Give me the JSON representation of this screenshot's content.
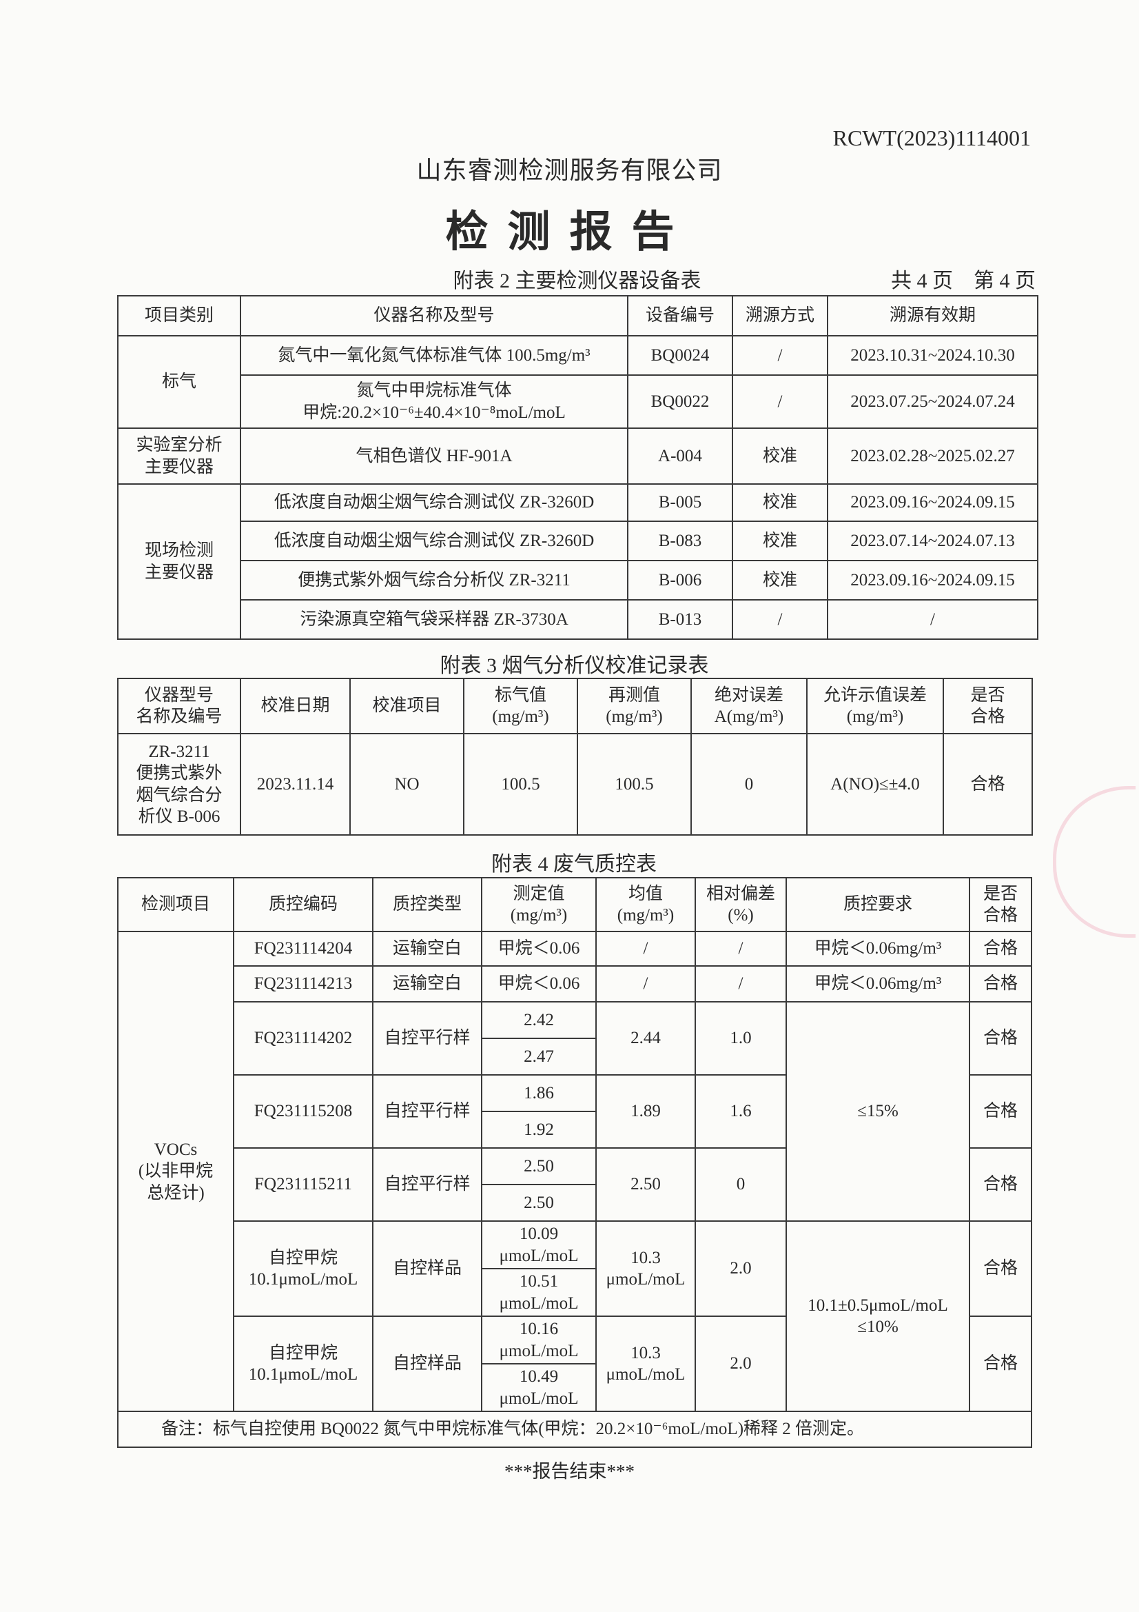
{
  "header": {
    "report_no": "RCWT(2023)1114001",
    "company": "山东睿测检测服务有限公司",
    "title": "检测报告",
    "page_info": "共 4 页　第 4 页"
  },
  "table2": {
    "caption": "附表 2  主要检测仪器设备表",
    "headers": [
      "项目类别",
      "仪器名称及型号",
      "设备编号",
      "溯源方式",
      "溯源有效期"
    ],
    "groups": [
      "标气",
      "实验室分析\n主要仪器",
      "现场检测\n主要仪器"
    ],
    "rows": [
      {
        "name": "氮气中一氧化氮气体标准气体 100.5mg/m³",
        "id": "BQ0024",
        "method": "/",
        "validity": "2023.10.31~2024.10.30"
      },
      {
        "name": "氮气中甲烷标准气体\n甲烷:20.2×10⁻⁶±40.4×10⁻⁸moL/moL",
        "id": "BQ0022",
        "method": "/",
        "validity": "2023.07.25~2024.07.24"
      },
      {
        "name": "气相色谱仪 HF-901A",
        "id": "A-004",
        "method": "校准",
        "validity": "2023.02.28~2025.02.27"
      },
      {
        "name": "低浓度自动烟尘烟气综合测试仪 ZR-3260D",
        "id": "B-005",
        "method": "校准",
        "validity": "2023.09.16~2024.09.15"
      },
      {
        "name": "低浓度自动烟尘烟气综合测试仪 ZR-3260D",
        "id": "B-083",
        "method": "校准",
        "validity": "2023.07.14~2024.07.13"
      },
      {
        "name": "便携式紫外烟气综合分析仪 ZR-3211",
        "id": "B-006",
        "method": "校准",
        "validity": "2023.09.16~2024.09.15"
      },
      {
        "name": "污染源真空箱气袋采样器 ZR-3730A",
        "id": "B-013",
        "method": "/",
        "validity": "/"
      }
    ]
  },
  "table3": {
    "caption": "附表 3  烟气分析仪校准记录表",
    "headers": [
      "仪器型号\n名称及编号",
      "校准日期",
      "校准项目",
      "标气值\n(mg/m³)",
      "再测值\n(mg/m³)",
      "绝对误差\nA(mg/m³)",
      "允许示值误差\n(mg/m³)",
      "是否\n合格"
    ],
    "row": [
      "ZR-3211\n便携式紫外\n烟气综合分\n析仪 B-006",
      "2023.11.14",
      "NO",
      "100.5",
      "100.5",
      "0",
      "A(NO)≤±4.0",
      "合格"
    ]
  },
  "table4": {
    "caption": "附表 4  废气质控表",
    "headers": [
      "检测项目",
      "质控编码",
      "质控类型",
      "测定值\n(mg/m³)",
      "均值\n(mg/m³)",
      "相对偏差\n(%)",
      "质控要求",
      "是否\n合格"
    ],
    "item": "VOCs\n(以非甲烷\n总烃计)",
    "blanks": [
      {
        "code": "FQ231114204",
        "type": "运输空白",
        "value": "甲烷＜0.06",
        "mean": "/",
        "rsd": "/",
        "req": "甲烷＜0.06mg/m³",
        "pass": "合格"
      },
      {
        "code": "FQ231114213",
        "type": "运输空白",
        "value": "甲烷＜0.06",
        "mean": "/",
        "rsd": "/",
        "req": "甲烷＜0.06mg/m³",
        "pass": "合格"
      }
    ],
    "pairs": [
      {
        "code": "FQ231114202",
        "type": "自控平行样",
        "values": [
          "2.42",
          "2.47"
        ],
        "mean": "2.44",
        "rsd": "1.0",
        "pass": "合格"
      },
      {
        "code": "FQ231115208",
        "type": "自控平行样",
        "values": [
          "1.86",
          "1.92"
        ],
        "mean": "1.89",
        "rsd": "1.6",
        "pass": "合格"
      },
      {
        "code": "FQ231115211",
        "type": "自控平行样",
        "values": [
          "2.50",
          "2.50"
        ],
        "mean": "2.50",
        "rsd": "0",
        "pass": "合格"
      },
      {
        "code": "自控甲烷\n10.1μmoL/moL",
        "type": "自控样品",
        "values": [
          "10.09\nμmoL/moL",
          "10.51\nμmoL/moL"
        ],
        "mean": "10.3\nμmoL/moL",
        "rsd": "2.0",
        "pass": "合格"
      },
      {
        "code": "自控甲烷\n10.1μmoL/moL",
        "type": "自控样品",
        "values": [
          "10.16\nμmoL/moL",
          "10.49\nμmoL/moL"
        ],
        "mean": "10.3\nμmoL/moL",
        "rsd": "2.0",
        "pass": "合格"
      }
    ],
    "req_parallel": "≤15%",
    "req_sample": "10.1±0.5μmoL/moL\n≤10%",
    "note": "备注：标气自控使用 BQ0022 氮气中甲烷标准气体(甲烷：20.2×10⁻⁶moL/moL)稀释 2 倍测定。"
  },
  "footer": {
    "end": "***报告结束***"
  },
  "colors": {
    "text": "#2a2a2a",
    "stamp": "#e6789a"
  }
}
